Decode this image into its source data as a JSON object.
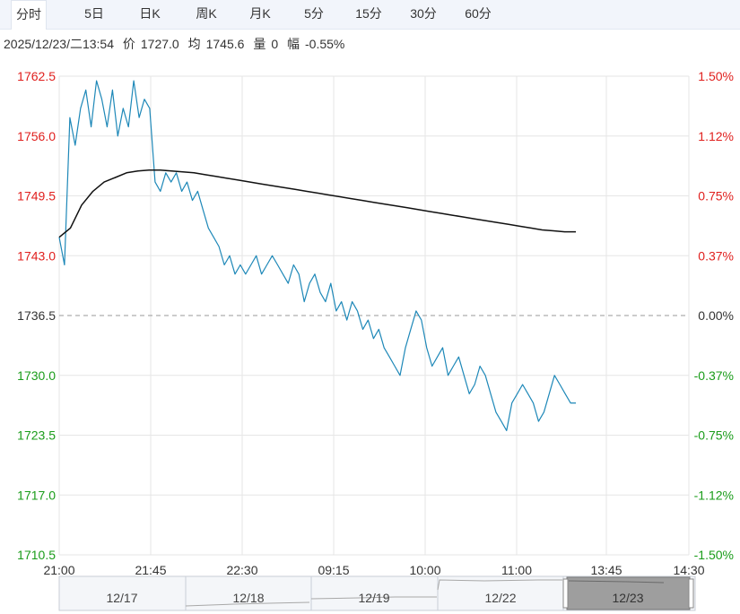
{
  "tabs": [
    {
      "label": "分时",
      "active": true
    },
    {
      "label": "5日",
      "active": false
    },
    {
      "label": "日K",
      "active": false
    },
    {
      "label": "周K",
      "active": false
    },
    {
      "label": "月K",
      "active": false
    },
    {
      "label": "5分",
      "active": false
    },
    {
      "label": "15分",
      "active": false
    },
    {
      "label": "30分",
      "active": false
    },
    {
      "label": "60分",
      "active": false
    }
  ],
  "info": {
    "datetime": "2025/12/23/二13:54",
    "price_label": "价",
    "price": "1727.0",
    "avg_label": "均",
    "avg": "1745.6",
    "volume_label": "量",
    "volume": "0",
    "change_label": "幅",
    "change": "-0.55%"
  },
  "colors": {
    "up": "#e0201e",
    "down": "#1a9c1a",
    "price_line": "#1e88b8",
    "avg_line": "#111111",
    "grid": "#e6e6e6",
    "baseline": "#9a9a9a"
  },
  "chart_data": {
    "type": "line",
    "title": "",
    "base_price": 1736.5,
    "ylim": [
      1710.5,
      1762.5
    ],
    "y_ticks": [
      1762.5,
      1756.0,
      1749.5,
      1743.0,
      1736.5,
      1730.0,
      1723.5,
      1717.0,
      1710.5
    ],
    "y_tick_labels": [
      "1762.5",
      "1756.0",
      "1749.5",
      "1743.0",
      "1736.5",
      "1730.0",
      "1723.5",
      "1717.0",
      "1710.5"
    ],
    "pct_tick_labels": [
      "1.50%",
      "1.12%",
      "0.75%",
      "0.37%",
      "0.00%",
      "-0.37%",
      "-0.75%",
      "-1.12%",
      "-1.50%"
    ],
    "x_tick_labels": [
      "21:00",
      "21:45",
      "22:30",
      "09:15",
      "10:00",
      "11:00",
      "13:45",
      "14:30"
    ],
    "grid": true,
    "series": [
      {
        "key": "price",
        "values": [
          1745,
          1742,
          1758,
          1755,
          1759,
          1761,
          1757,
          1762,
          1760,
          1757,
          1761,
          1756,
          1759,
          1757,
          1762,
          1758,
          1760,
          1759,
          1751,
          1750,
          1752,
          1751,
          1752,
          1750,
          1751,
          1749,
          1750,
          1748,
          1746,
          1745,
          1744,
          1742,
          1743,
          1741,
          1742,
          1741,
          1742,
          1743,
          1741,
          1742,
          1743,
          1742,
          1741,
          1740,
          1742,
          1741,
          1738,
          1740,
          1741,
          1739,
          1738,
          1740,
          1737,
          1738,
          1736,
          1738,
          1737,
          1735,
          1736,
          1734,
          1735,
          1733,
          1732,
          1731,
          1730,
          1733,
          1735,
          1737,
          1736,
          1733,
          1731,
          1732,
          1733,
          1730,
          1731,
          1732,
          1730,
          1728,
          1729,
          1731,
          1730,
          1728,
          1726,
          1725,
          1724,
          1727,
          1728,
          1729,
          1728,
          1727,
          1725,
          1726,
          1728,
          1730,
          1729,
          1728,
          1727,
          1727
        ]
      },
      {
        "key": "average",
        "values": [
          1745,
          1746,
          1748.5,
          1750,
          1751,
          1751.5,
          1752,
          1752.2,
          1752.3,
          1752.3,
          1752.2,
          1752.1,
          1752,
          1751.8,
          1751.6,
          1751.4,
          1751.2,
          1751,
          1750.8,
          1750.6,
          1750.4,
          1750.2,
          1750,
          1749.8,
          1749.6,
          1749.4,
          1749.2,
          1749,
          1748.8,
          1748.6,
          1748.4,
          1748.2,
          1748,
          1747.8,
          1747.6,
          1747.4,
          1747.2,
          1747,
          1746.8,
          1746.6,
          1746.4,
          1746.2,
          1746,
          1745.8,
          1745.7,
          1745.6,
          1745.6
        ]
      }
    ]
  },
  "navigator": {
    "dates": [
      "12/17",
      "12/18",
      "12/19",
      "12/22",
      "12/23"
    ]
  }
}
